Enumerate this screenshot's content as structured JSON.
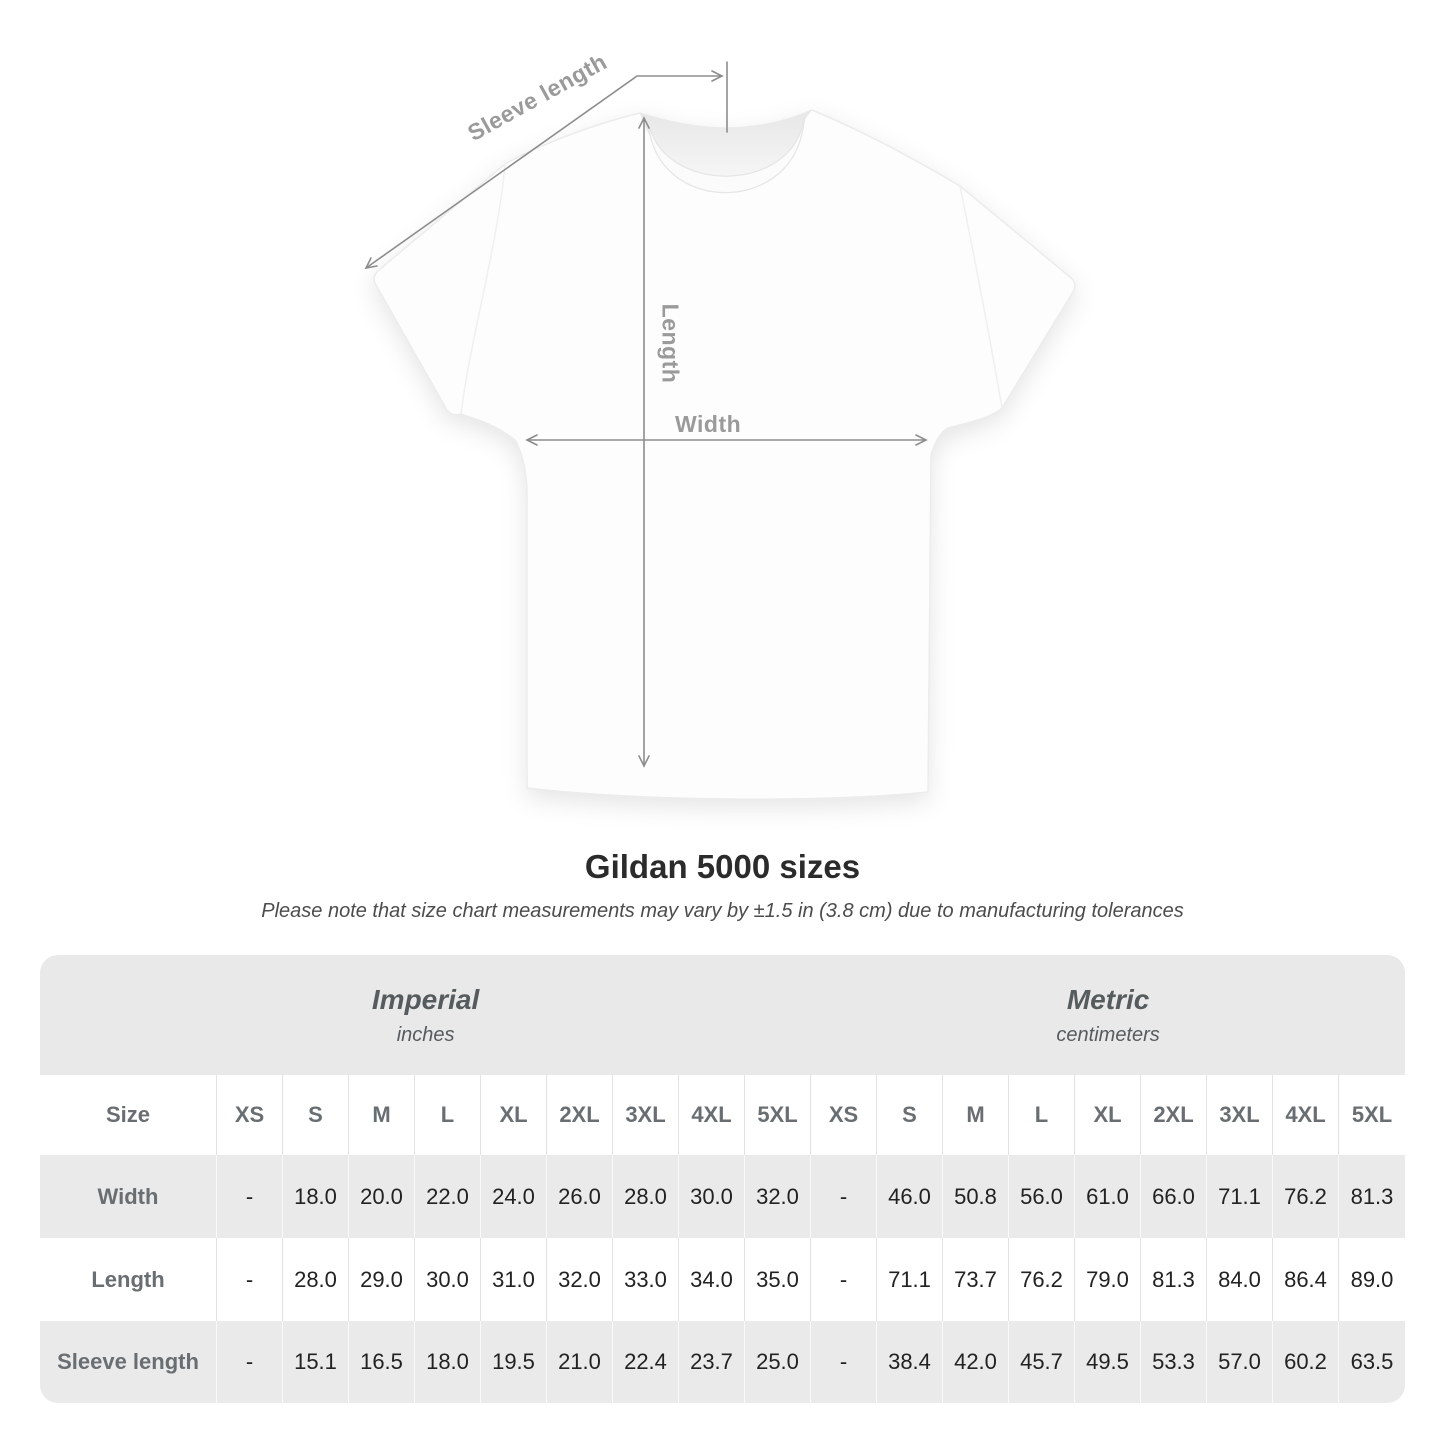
{
  "diagram": {
    "sleeve_label": "Sleeve length",
    "length_label": "Length",
    "width_label": "Width"
  },
  "title": "Gildan 5000 sizes",
  "note": "Please note that size chart measurements may vary by ±1.5 in (3.8 cm) due to manufacturing tolerances",
  "colors": {
    "dimension_line": "#8d8d8d",
    "dimension_label": "#9a9a9a",
    "table_band": "#e9e9e9",
    "row_alt": "#eaeaea",
    "header_text": "#565b5e",
    "value_text": "#222222"
  },
  "table": {
    "size_label": "Size",
    "groups": [
      {
        "name": "Imperial",
        "unit": "inches"
      },
      {
        "name": "Metric",
        "unit": "centimeters"
      }
    ],
    "sizes": [
      "XS",
      "S",
      "M",
      "L",
      "XL",
      "2XL",
      "3XL",
      "4XL",
      "5XL"
    ],
    "rows": [
      {
        "label": "Width",
        "imperial": [
          "-",
          "18.0",
          "20.0",
          "22.0",
          "24.0",
          "26.0",
          "28.0",
          "30.0",
          "32.0"
        ],
        "metric": [
          "-",
          "46.0",
          "50.8",
          "56.0",
          "61.0",
          "66.0",
          "71.1",
          "76.2",
          "81.3"
        ]
      },
      {
        "label": "Length",
        "imperial": [
          "-",
          "28.0",
          "29.0",
          "30.0",
          "31.0",
          "32.0",
          "33.0",
          "34.0",
          "35.0"
        ],
        "metric": [
          "-",
          "71.1",
          "73.7",
          "76.2",
          "79.0",
          "81.3",
          "84.0",
          "86.4",
          "89.0"
        ]
      },
      {
        "label": "Sleeve length",
        "imperial": [
          "-",
          "15.1",
          "16.5",
          "18.0",
          "19.5",
          "21.0",
          "22.4",
          "23.7",
          "25.0"
        ],
        "metric": [
          "-",
          "38.4",
          "42.0",
          "45.7",
          "49.5",
          "53.3",
          "57.0",
          "60.2",
          "63.5"
        ]
      }
    ]
  }
}
